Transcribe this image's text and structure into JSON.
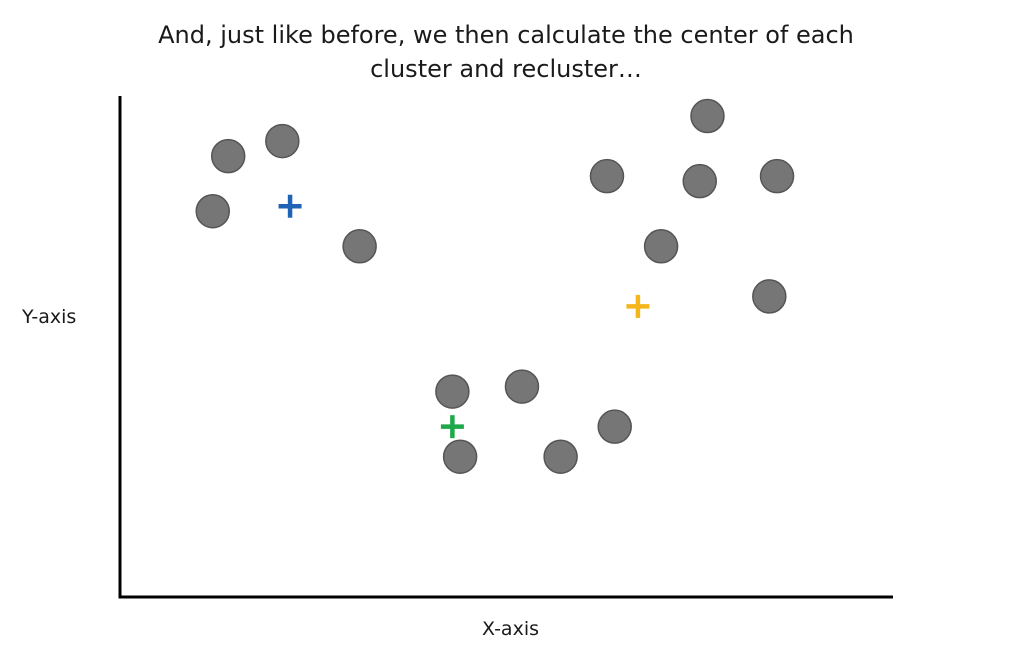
{
  "title_lines": [
    "And, just like before, we then calculate the center of each",
    "cluster and recluster…"
  ],
  "colors": {
    "axis": "#000000",
    "point_fill": "#767676",
    "point_stroke": "#555555",
    "centroid_blue": "#1f63b5",
    "centroid_yellow": "#f5b51c",
    "centroid_green": "#1fa84a"
  },
  "chart_data": {
    "type": "scatter",
    "xlabel": "X-axis",
    "ylabel": "Y-axis",
    "xlim": [
      0,
      100
    ],
    "ylim": [
      0,
      100
    ],
    "grid": false,
    "ticks": false,
    "series": [
      {
        "marker": "circle",
        "points": [
          {
            "x": 14,
            "y": 88
          },
          {
            "x": 21,
            "y": 91
          },
          {
            "x": 12,
            "y": 77
          },
          {
            "x": 31,
            "y": 70
          },
          {
            "x": 76,
            "y": 96
          },
          {
            "x": 63,
            "y": 84
          },
          {
            "x": 75,
            "y": 83
          },
          {
            "x": 85,
            "y": 84
          },
          {
            "x": 70,
            "y": 70
          },
          {
            "x": 84,
            "y": 60
          },
          {
            "x": 43,
            "y": 41
          },
          {
            "x": 52,
            "y": 42
          },
          {
            "x": 64,
            "y": 34
          },
          {
            "x": 44,
            "y": 28
          },
          {
            "x": 57,
            "y": 28
          }
        ]
      },
      {
        "marker": "plus",
        "points": [
          {
            "x": 22,
            "y": 78,
            "color": "#1f63b5"
          },
          {
            "x": 67,
            "y": 58,
            "color": "#f5b51c"
          },
          {
            "x": 43,
            "y": 34,
            "color": "#1fa84a"
          }
        ]
      }
    ]
  }
}
